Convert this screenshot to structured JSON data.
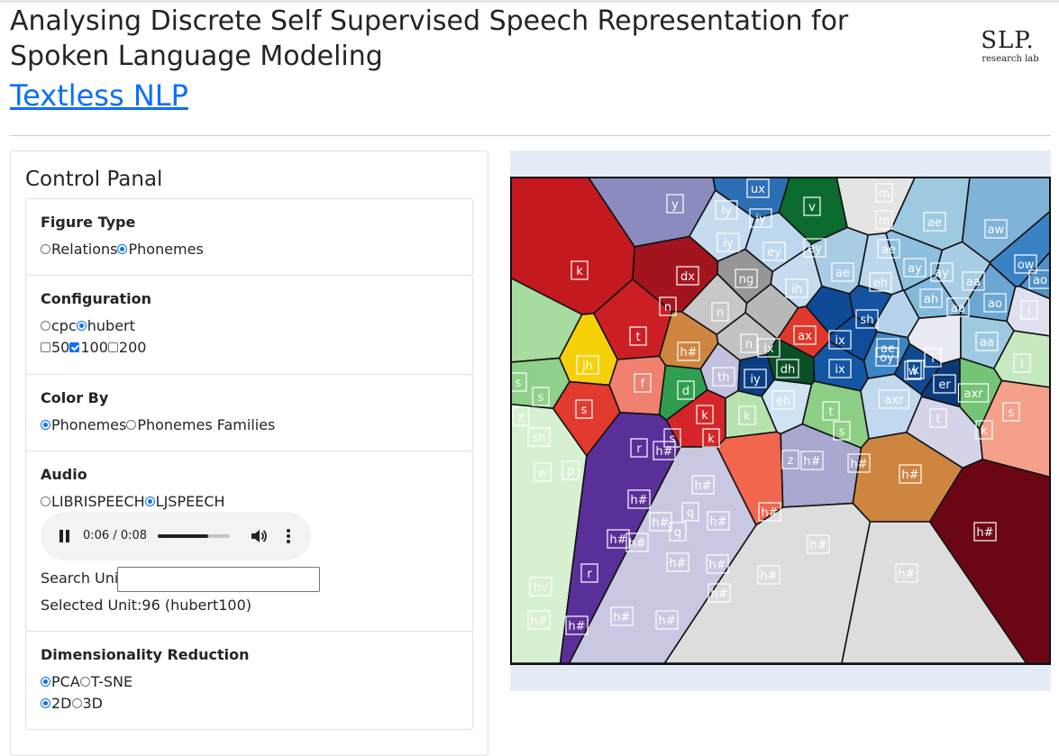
{
  "header": {
    "title": "Analysing Discrete Self Supervised Speech Representation for Spoken Language Modeling",
    "link": "Textless NLP",
    "logo_main": "SLP.",
    "logo_sub": "research lab"
  },
  "panel": {
    "title": "Control Panal",
    "figure_type": {
      "title": "Figure Type",
      "options": [
        "Relations",
        "Phonemes"
      ],
      "selected": "Phonemes"
    },
    "configuration": {
      "title": "Configuration",
      "models": [
        "cpc",
        "hubert"
      ],
      "selected_model": "hubert",
      "units": [
        "50",
        "100",
        "200"
      ],
      "checked_units": [
        "100"
      ]
    },
    "color_by": {
      "title": "Color By",
      "options": [
        "Phonemes",
        "Phonemes Families"
      ],
      "selected": "Phonemes"
    },
    "audio": {
      "title": "Audio",
      "options": [
        "LIBRISPEECH",
        "LJSPEECH"
      ],
      "selected": "LJSPEECH",
      "player": {
        "time": "0:06 / 0:08",
        "progress": 0.7
      },
      "search_label": "Search Unit:",
      "search_value": "",
      "selected_unit": "Selected Unit:96 (hubert100)"
    },
    "dim_reduction": {
      "title": "Dimensionality Reduction",
      "methods": [
        "PCA",
        "T-SNE"
      ],
      "selected_method": "PCA",
      "dims": [
        "2D",
        "3D"
      ],
      "selected_dim": "2D"
    }
  },
  "plot": {
    "cells": [
      {
        "label": "k",
        "color": "#c4191f"
      },
      {
        "label": "y",
        "color": "#8b8bbf"
      },
      {
        "label": "ux",
        "color": "#2c6fb5"
      },
      {
        "label": "v",
        "color": "#0b6b2e"
      },
      {
        "label": "m",
        "color": "#e4e4e4"
      },
      {
        "label": "ae",
        "color": "#9ecae1"
      },
      {
        "label": "aw",
        "color": "#7fb3d8"
      },
      {
        "label": "ow",
        "color": "#3b82c4"
      },
      {
        "label": "ao",
        "color": "#4f91c9"
      },
      {
        "label": "iy",
        "color": "#c6dbef"
      },
      {
        "label": "ey",
        "color": "#bcd7ee"
      },
      {
        "label": "dx",
        "color": "#a3151e"
      },
      {
        "label": "ng",
        "color": "#969696"
      },
      {
        "label": "ih",
        "color": "#c6dbef"
      },
      {
        "label": "ae",
        "color": "#a9cce5"
      },
      {
        "label": "eh",
        "color": "#bcd8ee"
      },
      {
        "label": "ay",
        "color": "#8dbfdf"
      },
      {
        "label": "aa",
        "color": "#a8cde6"
      },
      {
        "label": "ah",
        "color": "#84b9dc"
      },
      {
        "label": "ao",
        "color": "#6ba6d4"
      },
      {
        "label": "l",
        "color": "#e0e0ee"
      },
      {
        "label": "n",
        "color": "#c8c8c8"
      },
      {
        "label": "n",
        "color": "#b9b9b9"
      },
      {
        "label": "ix",
        "color": "#0e4a96"
      },
      {
        "label": "ix",
        "color": "#14539f"
      },
      {
        "label": "ae",
        "color": "#b4d3ea"
      },
      {
        "label": "sh",
        "color": "#a8dba0"
      },
      {
        "label": "k",
        "color": "#cc1f25"
      },
      {
        "label": "t",
        "color": "#e0382c"
      },
      {
        "label": "ax",
        "color": "#0f4c9a"
      },
      {
        "label": "jh",
        "color": "#f6d10a"
      },
      {
        "label": "h#",
        "color": "#cd853f"
      },
      {
        "label": "n",
        "color": "#c2c2c2"
      },
      {
        "label": "dh",
        "color": "#0b4f26"
      },
      {
        "label": "ix",
        "color": "#1356a3"
      },
      {
        "label": "oy",
        "color": "#3d86c6"
      },
      {
        "label": "l",
        "color": "#eaeaf3"
      },
      {
        "label": "aa",
        "color": "#9ecae1"
      },
      {
        "label": "s",
        "color": "#c7e9c0"
      },
      {
        "label": "f",
        "color": "#8fd08a"
      },
      {
        "label": "d",
        "color": "#f08070"
      },
      {
        "label": "th",
        "color": "#2f9e4f"
      },
      {
        "label": "w",
        "color": "#c2c2e0"
      },
      {
        "label": "axr",
        "color": "#0b3e82"
      },
      {
        "label": "er",
        "color": "#0f4b92"
      },
      {
        "label": "axr",
        "color": "#0a3a7a"
      },
      {
        "label": "z",
        "color": "#74c476"
      },
      {
        "label": "d",
        "color": "#f4a08a"
      },
      {
        "label": "iy",
        "color": "#cfe3f3"
      },
      {
        "label": "eh",
        "color": "#c0d9ee"
      },
      {
        "label": "r",
        "color": "#d4d4e8"
      },
      {
        "label": "k",
        "color": "#d4262a"
      },
      {
        "label": "sh",
        "color": "#b7e2b0"
      },
      {
        "label": "z",
        "color": "#8ccf85"
      },
      {
        "label": "s",
        "color": "#d8f0d2"
      },
      {
        "label": "t",
        "color": "#e23a2e"
      },
      {
        "label": "p",
        "color": "#f2664e"
      },
      {
        "label": "w",
        "color": "#a8a8d0"
      },
      {
        "label": "r",
        "color": "#c8c8e2"
      },
      {
        "label": "h#",
        "color": "#cd853f"
      },
      {
        "label": "q",
        "color": "#6b0714"
      },
      {
        "label": "hv",
        "color": "#5b2f99"
      }
    ],
    "labels": [
      "k",
      "y",
      "ux",
      "v",
      "m",
      "m",
      "ae",
      "aw",
      "ow",
      "ao",
      "iy",
      "iy",
      "iy",
      "ey",
      "ey",
      "ae",
      "dx",
      "ng",
      "ih",
      "ae",
      "eh",
      "ay",
      "ay",
      "aa",
      "ah",
      "aa",
      "ao",
      "l",
      "n",
      "n",
      "ix",
      "ix",
      "ae",
      "sh",
      "k",
      "t",
      "ax",
      "h#",
      "n",
      "dh",
      "ix",
      "oy",
      "l",
      "w",
      "aa",
      "l",
      "jh",
      "f",
      "d",
      "th",
      "iy",
      "eh",
      "axr",
      "er",
      "axr",
      "s",
      "s",
      "s",
      "s",
      "z",
      "sh",
      "k",
      "k",
      "k",
      "s",
      "z",
      "r",
      "t",
      "s",
      "t",
      "k",
      "w",
      "p",
      "h#",
      "h#",
      "h#",
      "h#",
      "h#",
      "h#",
      "q",
      "h#",
      "h#",
      "h#",
      "h#",
      "h#",
      "q",
      "hv",
      "r",
      "h#",
      "h#",
      "h#",
      "h#",
      "h#",
      "h#",
      "h#",
      "h#",
      "h#",
      "h#",
      "h#"
    ]
  }
}
